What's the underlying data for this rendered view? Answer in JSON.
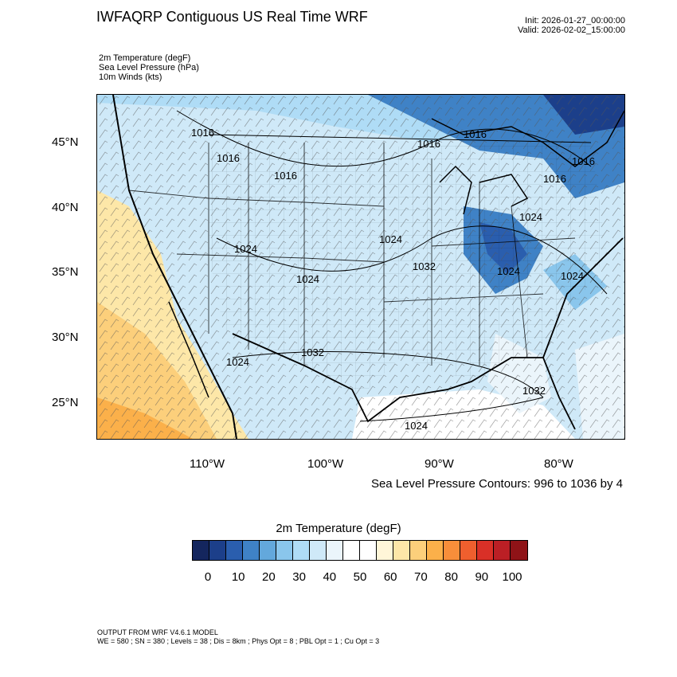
{
  "title": "IWFAQRP Contiguous US Real Time WRF",
  "init": "Init: 2026-01-27_00:00:00",
  "valid": "Valid: 2026-02-02_15:00:00",
  "fields": [
    "2m Temperature   (degF)",
    "Sea Level Pressure   (hPa)",
    "10m Winds   (kts)"
  ],
  "lat_labels": [
    "45°N",
    "40°N",
    "35°N",
    "30°N",
    "25°N"
  ],
  "lon_labels": [
    "110°W",
    "100°W",
    "90°W",
    "80°W"
  ],
  "isobar_labels": [
    "1016",
    "1016",
    "1016",
    "1016",
    "1016",
    "1016",
    "1016",
    "1024",
    "1024",
    "1024",
    "1024",
    "1032",
    "1024",
    "1024",
    "1032",
    "1032",
    "1024",
    "1024"
  ],
  "contour_note": "Sea Level Pressure Contours: 996 to 1036 by 4",
  "colorbar": {
    "title": "2m Temperature  (degF)",
    "colors": [
      "#14265e",
      "#1c3f8a",
      "#2a5eae",
      "#3f82c6",
      "#63a8dc",
      "#8ac6ec",
      "#afdcf6",
      "#cfe9f8",
      "#ebf5fb",
      "#ffffff",
      "#ffffff",
      "#fff6d8",
      "#fde7a8",
      "#fccf7b",
      "#fbb04a",
      "#f88e3a",
      "#ef5f2e",
      "#d93027",
      "#bb1f25",
      "#8f1317"
    ],
    "labels": [
      "0",
      "10",
      "20",
      "30",
      "40",
      "50",
      "60",
      "70",
      "80",
      "90",
      "100"
    ]
  },
  "footer": [
    "OUTPUT FROM WRF V4.6.1 MODEL",
    "WE = 580 ; SN = 380 ; Levels = 38 ; Dis = 8km ; Phys Opt = 8 ; PBL Opt = 1 ; Cu Opt = 3"
  ]
}
